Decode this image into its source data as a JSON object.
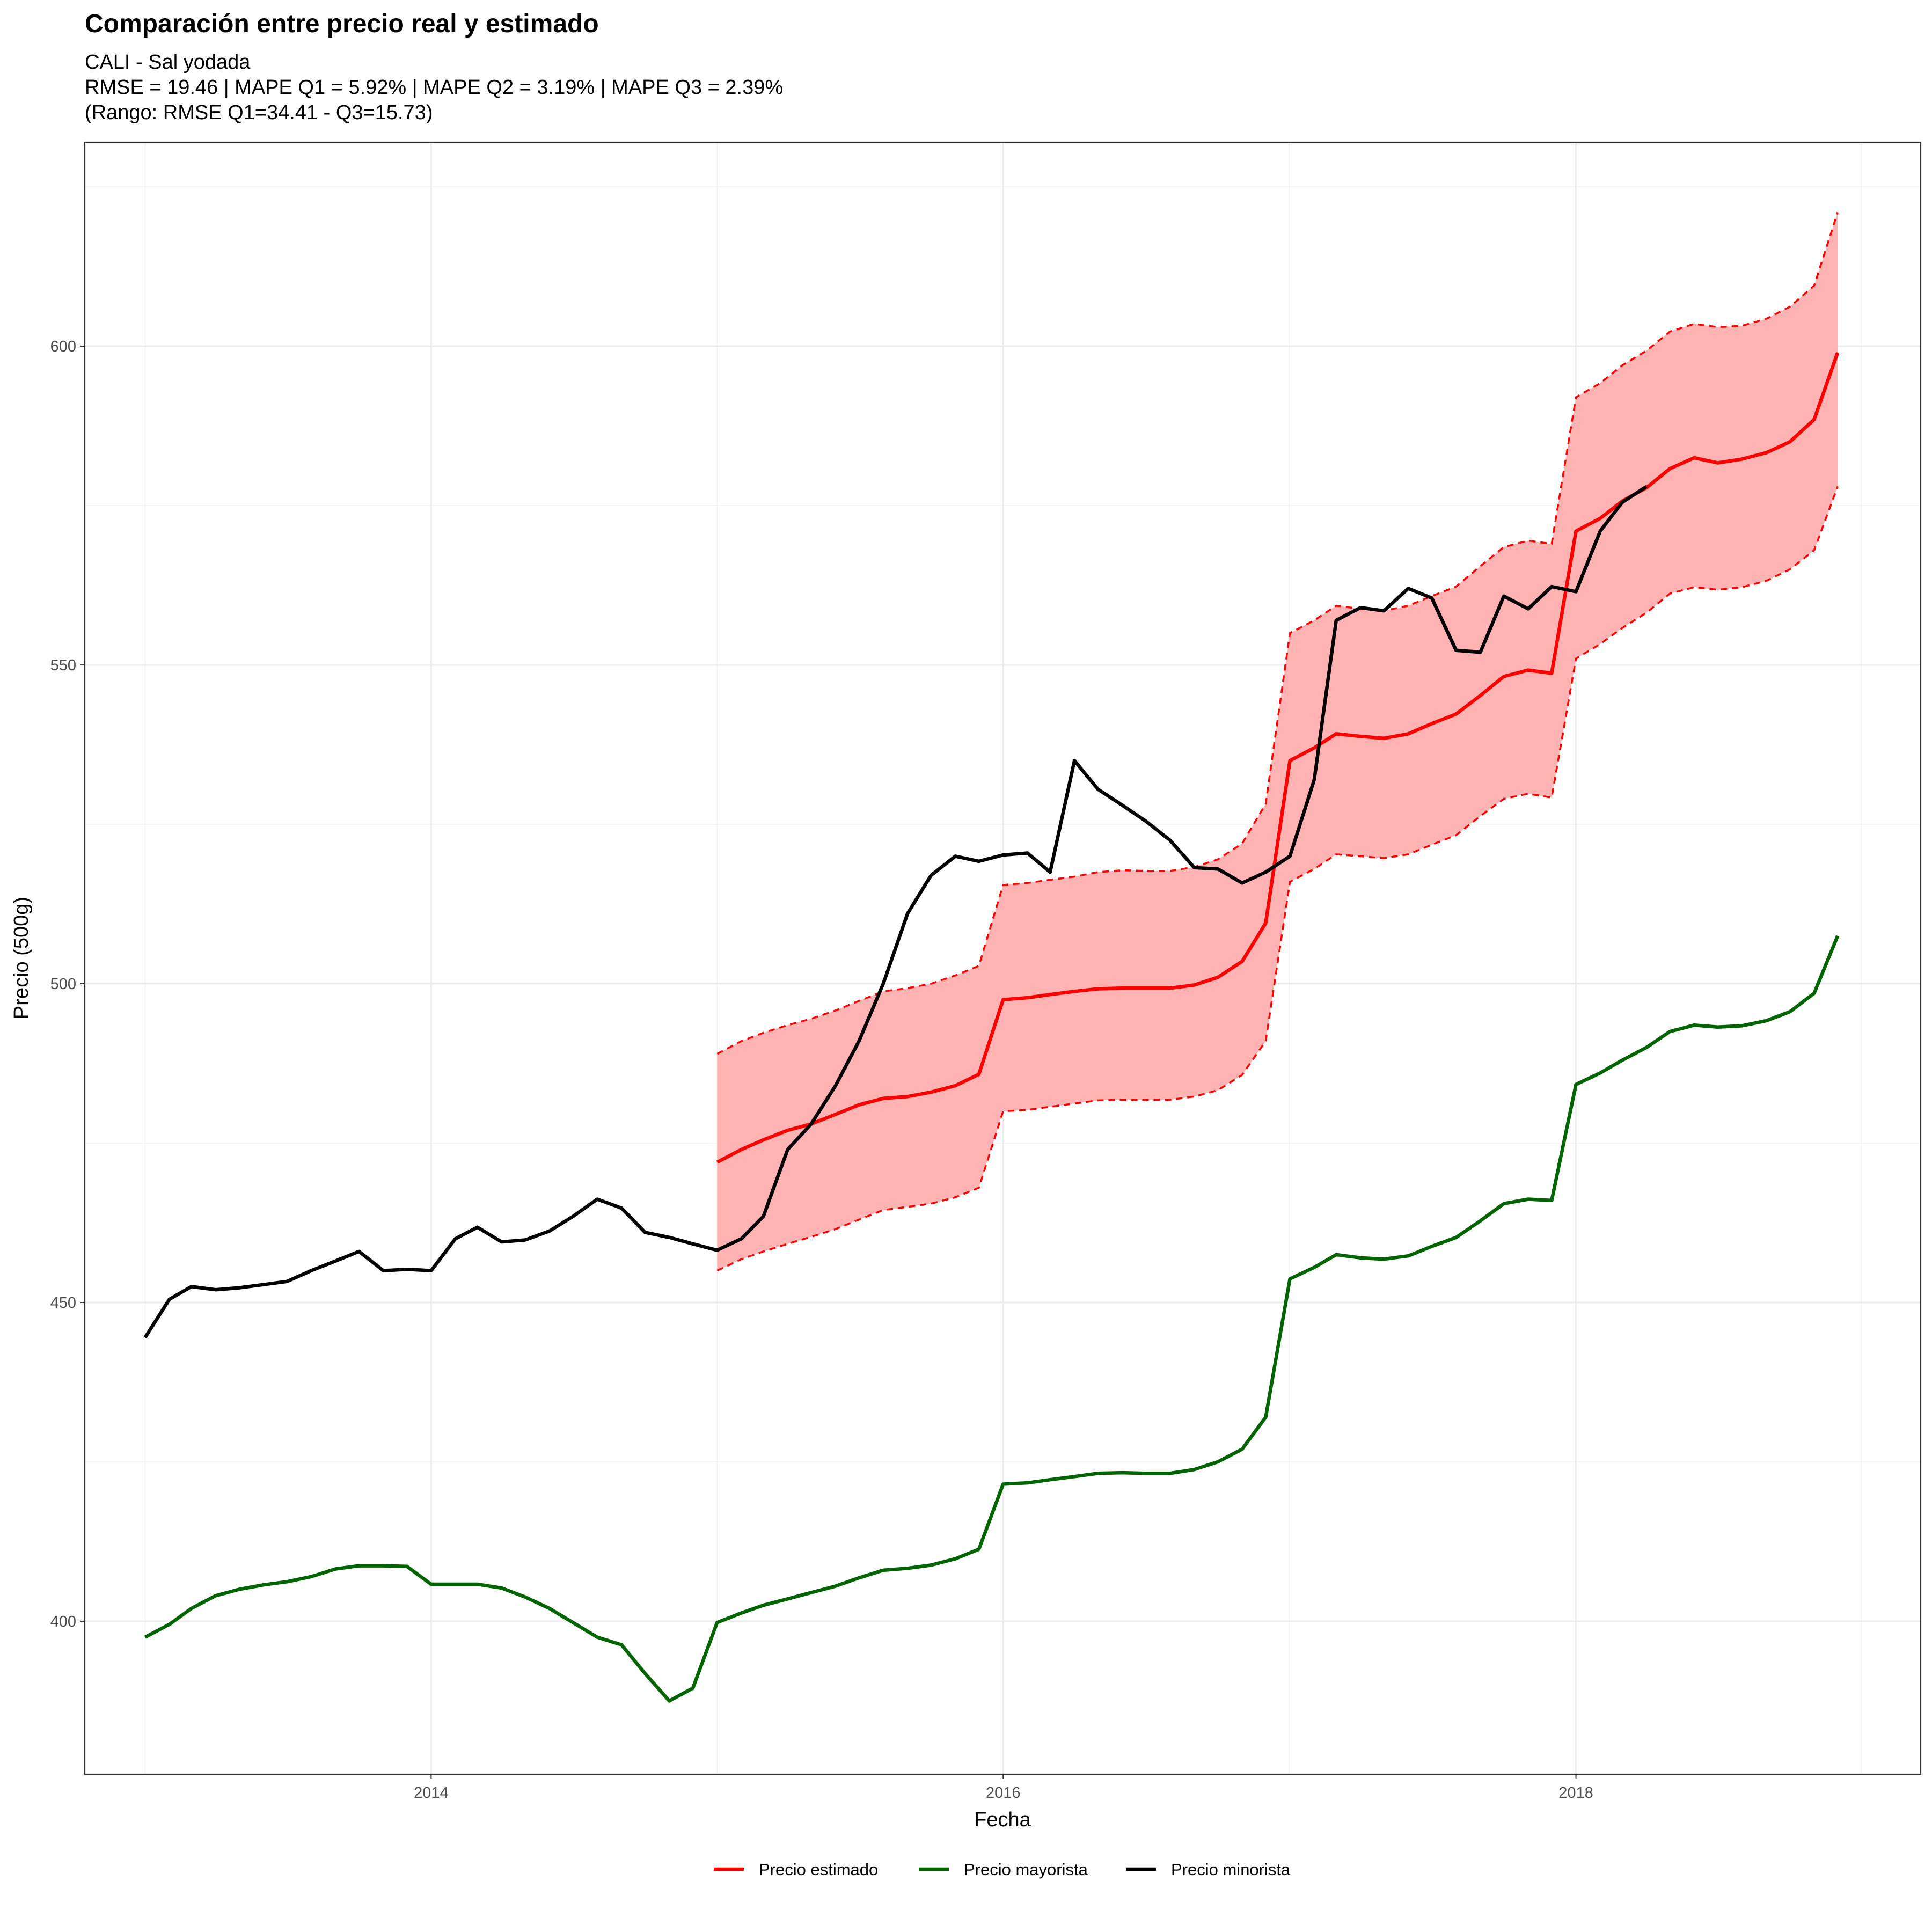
{
  "chart_data": {
    "type": "line",
    "title": "Comparación entre precio real y estimado",
    "subtitle_lines": [
      "CALI - Sal yodada",
      "RMSE = 19.46 | MAPE Q1 = 5.92% | MAPE Q2 = 3.19% | MAPE Q3 = 2.39%",
      "(Rango: RMSE Q1=34.41 - Q3=15.73)"
    ],
    "xlabel": "Fecha",
    "ylabel": "Precio (500g)",
    "xlim": [
      "2012-10-16",
      "2019-03-17"
    ],
    "ylim": [
      376,
      632
    ],
    "x_ticks": [
      "2014",
      "2016",
      "2018"
    ],
    "x_tick_dates": [
      "2014-01-01",
      "2016-01-01",
      "2018-01-01"
    ],
    "y_ticks": [
      400,
      450,
      500,
      550,
      600
    ],
    "grid": true,
    "legend_position": "bottom",
    "colors": {
      "estimado": "#ff0000",
      "mayorista": "#006400",
      "minorista": "#000000",
      "band_fill": "#ffb3b3"
    },
    "series": [
      {
        "name": "Precio minorista",
        "color": "#000000",
        "start": "2013-01",
        "values": [
          444.5,
          450.5,
          452.5,
          452,
          452.3,
          452.8,
          453.3,
          455,
          456.5,
          458,
          455,
          455.2,
          455,
          460,
          461.8,
          459.5,
          459.8,
          461.2,
          463.5,
          466.2,
          464.8,
          461,
          460.2,
          459.2,
          458.2,
          460,
          463.5,
          474,
          478,
          484,
          491,
          500,
          511,
          517,
          520,
          519.2,
          520.2,
          520.5,
          517.5,
          535,
          530.5,
          528,
          525.5,
          522.5,
          518.2,
          518,
          515.8,
          517.5,
          520,
          532,
          557,
          559,
          558.5,
          562,
          560.5,
          552.3,
          552,
          560.8,
          558.8,
          562.3,
          561.5,
          571,
          575.5,
          578
        ]
      },
      {
        "name": "Precio estimado",
        "color": "#ff0000",
        "start": "2015-01",
        "values": [
          472,
          474,
          475.5,
          477,
          478,
          479.5,
          481,
          482,
          482.3,
          483,
          484,
          485.8,
          497.5,
          497.8,
          498.3,
          498.8,
          499.2,
          499.3,
          499.3,
          499.3,
          499.8,
          501,
          503.5,
          509.5,
          535,
          537,
          539.2,
          538.8,
          538.5,
          539.2,
          540.8,
          542.3,
          545.2,
          548.2,
          549.2,
          548.7,
          571,
          573,
          575.7,
          577.8,
          580.8,
          582.5,
          581.7,
          582.3,
          583.3,
          585,
          588.5,
          599
        ]
      },
      {
        "name": "Banda superior",
        "color": "#ff0000",
        "start": "2015-01",
        "values": [
          489,
          491,
          492.3,
          493.5,
          494.5,
          495.8,
          497.3,
          498.8,
          499.3,
          500,
          501.3,
          502.8,
          515.5,
          515.8,
          516.3,
          516.8,
          517.5,
          517.8,
          517.7,
          517.7,
          518.3,
          519.5,
          522,
          528.2,
          555,
          557,
          559.3,
          558.8,
          558.5,
          559.3,
          560.8,
          562.3,
          565.5,
          568.5,
          569.5,
          569,
          592,
          594.2,
          597,
          599.3,
          602.3,
          603.5,
          603,
          603.2,
          604.3,
          606.2,
          609.5,
          621
        ]
      },
      {
        "name": "Banda inferior",
        "color": "#ff0000",
        "start": "2015-01",
        "values": [
          455,
          456.8,
          458,
          459.2,
          460.3,
          461.5,
          463,
          464.5,
          465,
          465.5,
          466.5,
          468,
          480,
          480.2,
          480.7,
          481.2,
          481.7,
          481.8,
          481.8,
          481.8,
          482.3,
          483.3,
          485.7,
          491,
          516,
          518,
          520.3,
          520,
          519.7,
          520.3,
          521.8,
          523.3,
          526.3,
          529,
          529.8,
          529.2,
          551,
          553.3,
          555.8,
          558.2,
          561.2,
          562.2,
          561.8,
          562.2,
          563.2,
          565,
          568,
          578
        ]
      },
      {
        "name": "Precio mayorista",
        "color": "#006400",
        "start": "2013-01",
        "values": [
          397.5,
          399.5,
          402,
          404,
          405,
          405.7,
          406.2,
          407,
          408.2,
          408.7,
          408.7,
          408.6,
          405.8,
          405.8,
          405.8,
          405.2,
          403.8,
          402,
          399.8,
          397.5,
          396.3,
          391.8,
          387.5,
          389.5,
          399.8,
          401.3,
          402.5,
          403.5,
          404.5,
          405.5,
          406.8,
          408,
          408.3,
          408.8,
          409.8,
          411.3,
          421.5,
          421.7,
          422.2,
          422.7,
          423.2,
          423.3,
          423.2,
          423.2,
          423.8,
          425,
          427,
          432,
          453.7,
          455.5,
          457.5,
          457,
          456.8,
          457.3,
          458.8,
          460.2,
          462.8,
          465.5,
          466.2,
          466,
          484.2,
          486,
          488,
          490,
          492.5,
          493.5,
          493.2,
          493.4,
          494.2,
          495.6,
          498.5,
          507.5
        ]
      }
    ],
    "legend": [
      {
        "label": "Precio estimado",
        "color": "#ff0000"
      },
      {
        "label": "Precio mayorista",
        "color": "#006400"
      },
      {
        "label": "Precio minorista",
        "color": "#000000"
      }
    ]
  }
}
